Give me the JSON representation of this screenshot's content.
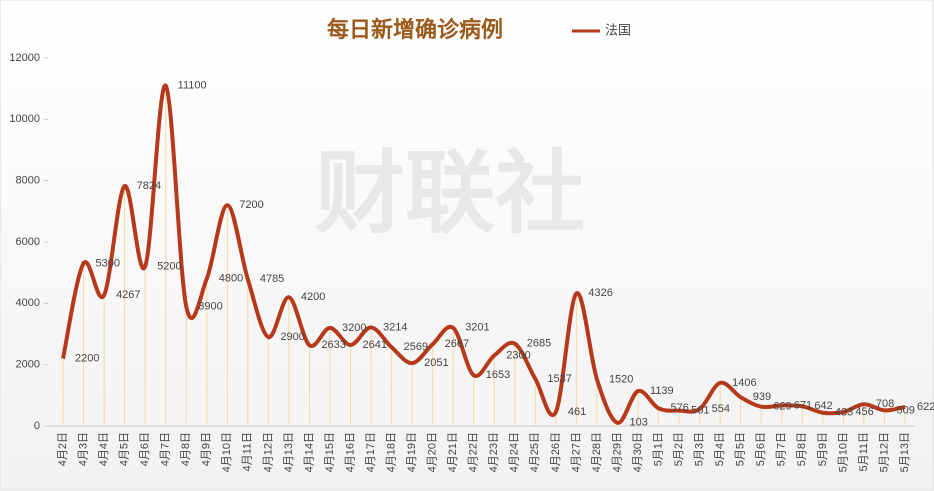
{
  "watermark": "财联社",
  "chart_data": {
    "type": "line",
    "title": "每日新增确诊病例",
    "categories": [
      "4月2日",
      "4月3日",
      "4月4日",
      "4月5日",
      "4月6日",
      "4月7日",
      "4月8日",
      "4月9日",
      "4月10日",
      "4月11日",
      "4月12日",
      "4月13日",
      "4月14日",
      "4月15日",
      "4月16日",
      "4月17日",
      "4月18日",
      "4月19日",
      "4月20日",
      "4月21日",
      "4月22日",
      "4月23日",
      "4月24日",
      "4月25日",
      "4月26日",
      "4月27日",
      "4月28日",
      "4月29日",
      "4月30日",
      "5月1日",
      "5月2日",
      "5月3日",
      "5月4日",
      "5月5日",
      "5月6日",
      "5月7日",
      "5月8日",
      "5月9日",
      "5月10日",
      "5月11日",
      "5月12日",
      "5月13日"
    ],
    "series": [
      {
        "name": "法国",
        "color": "#b5391a",
        "values": [
          2200,
          5300,
          4267,
          7824,
          5200,
          11100,
          3900,
          4800,
          7200,
          4785,
          2900,
          4200,
          2633,
          3200,
          2641,
          3214,
          2569,
          2051,
          2667,
          3201,
          1653,
          2300,
          2685,
          1537,
          461,
          4326,
          1520,
          103,
          1139,
          576,
          501,
          554,
          1406,
          939,
          629,
          671,
          642,
          433,
          456,
          708,
          509,
          622
        ]
      }
    ],
    "ylim": [
      0,
      12000
    ],
    "yticks": [
      0,
      2000,
      4000,
      6000,
      8000,
      10000,
      12000
    ],
    "drop_line_color": "#f3d9a6",
    "legend": "top"
  }
}
